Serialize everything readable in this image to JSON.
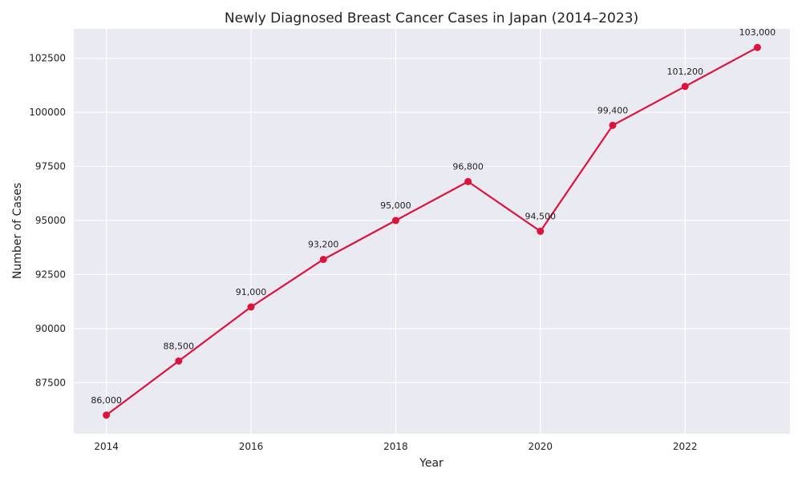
{
  "chart_data": {
    "type": "line",
    "title": "Newly Diagnosed Breast Cancer Cases in Japan (2014–2023)",
    "xlabel": "Year",
    "ylabel": "Number of Cases",
    "x": [
      2014,
      2015,
      2016,
      2017,
      2018,
      2019,
      2020,
      2021,
      2022,
      2023
    ],
    "values": [
      86000,
      88500,
      91000,
      93200,
      95000,
      96800,
      94500,
      99400,
      101200,
      103000
    ],
    "data_labels": [
      "86,000",
      "88,500",
      "91,000",
      "93,200",
      "95,000",
      "96,800",
      "94,500",
      "99,400",
      "101,200",
      "103,000"
    ],
    "x_ticks": [
      "2014",
      "2016",
      "2018",
      "2020",
      "2022"
    ],
    "y_ticks": [
      "87500",
      "90000",
      "92500",
      "95000",
      "97500",
      "100000",
      "102500"
    ],
    "xlim": [
      2013.55,
      2023.45
    ],
    "ylim": [
      85140,
      103860
    ],
    "grid": true,
    "colors": {
      "line": "#dc143c",
      "background": "#eaeaf2",
      "grid": "#ffffff"
    }
  }
}
